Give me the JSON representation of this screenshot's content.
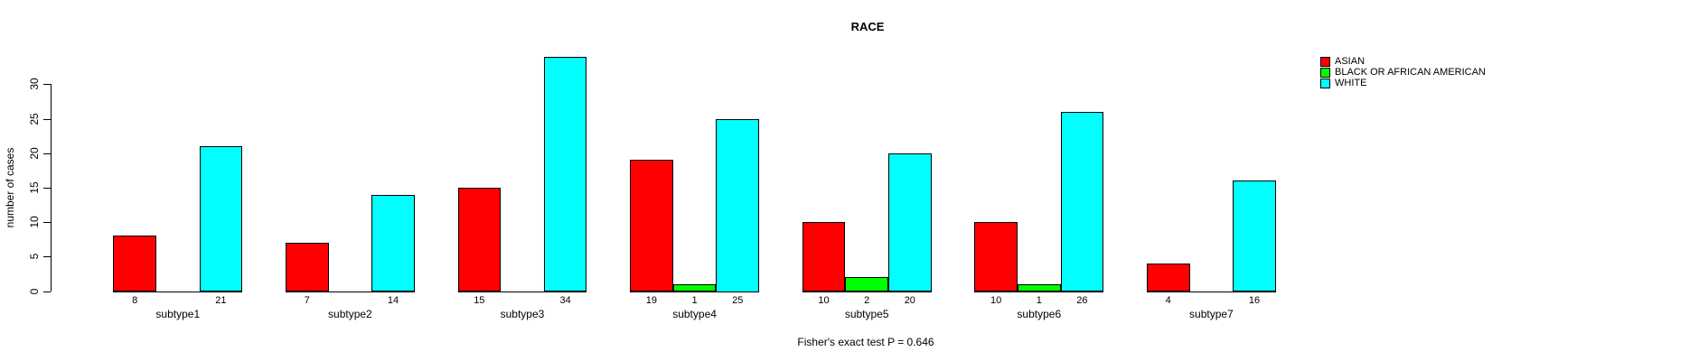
{
  "chart_data": {
    "type": "bar",
    "title": "RACE",
    "ylabel": "number of cases",
    "footer": "Fisher's exact test P = 0.646",
    "categories": [
      "subtype1",
      "subtype2",
      "subtype3",
      "subtype4",
      "subtype5",
      "subtype6",
      "subtype7"
    ],
    "series": [
      {
        "name": "ASIAN",
        "color": "#FF0000",
        "values": [
          8,
          7,
          15,
          19,
          10,
          10,
          4
        ]
      },
      {
        "name": "BLACK OR AFRICAN AMERICAN",
        "color": "#00FF00",
        "values": [
          0,
          0,
          0,
          1,
          2,
          1,
          0
        ]
      },
      {
        "name": "WHITE",
        "color": "#00FFFF",
        "values": [
          21,
          14,
          34,
          25,
          20,
          26,
          16
        ]
      }
    ],
    "yticks": [
      0,
      5,
      10,
      15,
      20,
      25,
      30
    ],
    "ylim": [
      0,
      34
    ],
    "bar_value_labels": true,
    "zero_bars_hidden_labels": true,
    "legend_position": "top-right",
    "grid": false,
    "background": "#FFFFFF",
    "axis_color": "#000000"
  }
}
